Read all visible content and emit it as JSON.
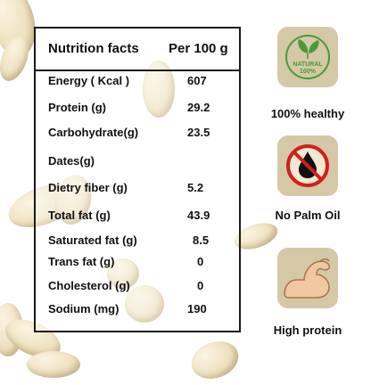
{
  "nutrition": {
    "header_left": "Nutrition facts",
    "header_right": "Per 100 g",
    "rows": [
      {
        "label": "Energy ( Kcal )",
        "value": "607"
      },
      {
        "label": "Protein (g)",
        "value": "29.2"
      },
      {
        "label": "Carbohydrate(g)",
        "value": "23.5"
      },
      {
        "label": "Dates(g)",
        "value": ""
      },
      {
        "label": "Dietry fiber (g)",
        "value": "5.2"
      },
      {
        "label": "Total fat (g)",
        "value": "43.9"
      },
      {
        "label": "Saturated fat (g)",
        "value": "8.5"
      },
      {
        "label": "Trans fat (g)",
        "value": "0"
      },
      {
        "label": "Cholesterol (g)",
        "value": "0"
      },
      {
        "label": "Sodium  (mg)",
        "value": "190"
      }
    ]
  },
  "badges": [
    {
      "icon": "natural-leaf-icon",
      "icon_text_1": "NATURAL",
      "icon_text_2": "100%",
      "label": "100% healthy"
    },
    {
      "icon": "no-palm-oil-icon",
      "label": "No Palm Oil"
    },
    {
      "icon": "flexed-arm-icon",
      "label": "High protein"
    }
  ],
  "colors": {
    "badge_bg": "#d5c8a6",
    "natural_green": "#4a9a3a",
    "no_red": "#d0201c"
  }
}
